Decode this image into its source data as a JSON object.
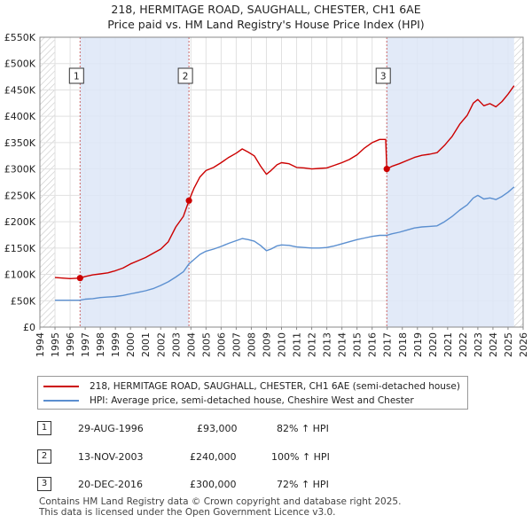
{
  "title_line1": "218, HERMITAGE ROAD, SAUGHALL, CHESTER, CH1 6AE",
  "title_line2": "Price paid vs. HM Land Registry's House Price Index (HPI)",
  "chart_data": {
    "type": "line",
    "title": "218, HERMITAGE ROAD, SAUGHALL, CHESTER, CH1 6AE — Price paid vs. HM Land Registry's House Price Index (HPI)",
    "xlabel": "",
    "ylabel": "",
    "xlim": [
      1994,
      2026
    ],
    "ylim": [
      0,
      550000
    ],
    "y_ticks": [
      0,
      50000,
      100000,
      150000,
      200000,
      250000,
      300000,
      350000,
      400000,
      450000,
      500000,
      550000
    ],
    "y_tick_labels": [
      "£0",
      "£50K",
      "£100K",
      "£150K",
      "£200K",
      "£250K",
      "£300K",
      "£350K",
      "£400K",
      "£450K",
      "£500K",
      "£550K"
    ],
    "x_ticks": [
      1994,
      1995,
      1996,
      1997,
      1998,
      1999,
      2000,
      2001,
      2002,
      2003,
      2004,
      2005,
      2006,
      2007,
      2008,
      2009,
      2010,
      2011,
      2012,
      2013,
      2014,
      2015,
      2016,
      2017,
      2018,
      2019,
      2020,
      2021,
      2022,
      2023,
      2024,
      2025,
      2026
    ],
    "x_tick_labels": [
      "1994",
      "1995",
      "1996",
      "1997",
      "1998",
      "1999",
      "2000",
      "2001",
      "2002",
      "2003",
      "2004",
      "2005",
      "2006",
      "2007",
      "2008",
      "2009",
      "2010",
      "2011",
      "2012",
      "2013",
      "2014",
      "2015",
      "2016",
      "2017",
      "2018",
      "2019",
      "2020",
      "2021",
      "2022",
      "2023",
      "2024",
      "2025",
      "2026"
    ],
    "grid": true,
    "data_start": 1995.0,
    "data_end": 2025.4,
    "series": [
      {
        "name": "218, HERMITAGE ROAD, SAUGHALL, CHESTER, CH1 6AE (semi-detached house)",
        "color": "#cc0000",
        "points": [
          [
            1995.0,
            94000
          ],
          [
            1995.5,
            93000
          ],
          [
            1996.0,
            92000
          ],
          [
            1996.66,
            93000
          ],
          [
            1997.0,
            96000
          ],
          [
            1997.5,
            99000
          ],
          [
            1998.0,
            101000
          ],
          [
            1998.5,
            103000
          ],
          [
            1999.0,
            107000
          ],
          [
            1999.5,
            112000
          ],
          [
            2000.0,
            120000
          ],
          [
            2000.5,
            126000
          ],
          [
            2001.0,
            132000
          ],
          [
            2001.5,
            140000
          ],
          [
            2002.0,
            148000
          ],
          [
            2002.5,
            162000
          ],
          [
            2003.0,
            190000
          ],
          [
            2003.5,
            210000
          ],
          [
            2003.87,
            240000
          ],
          [
            2004.2,
            263000
          ],
          [
            2004.6,
            285000
          ],
          [
            2005.0,
            297000
          ],
          [
            2005.5,
            303000
          ],
          [
            2006.0,
            312000
          ],
          [
            2006.5,
            322000
          ],
          [
            2007.0,
            330000
          ],
          [
            2007.4,
            338000
          ],
          [
            2007.8,
            332000
          ],
          [
            2008.2,
            325000
          ],
          [
            2008.6,
            306000
          ],
          [
            2009.0,
            290000
          ],
          [
            2009.3,
            297000
          ],
          [
            2009.7,
            308000
          ],
          [
            2010.0,
            312000
          ],
          [
            2010.5,
            310000
          ],
          [
            2011.0,
            303000
          ],
          [
            2011.5,
            302000
          ],
          [
            2012.0,
            300000
          ],
          [
            2012.5,
            301000
          ],
          [
            2013.0,
            302000
          ],
          [
            2013.5,
            307000
          ],
          [
            2014.0,
            312000
          ],
          [
            2014.5,
            318000
          ],
          [
            2015.0,
            327000
          ],
          [
            2015.5,
            340000
          ],
          [
            2016.0,
            350000
          ],
          [
            2016.5,
            356000
          ],
          [
            2016.9,
            356000
          ],
          [
            2016.97,
            300000
          ],
          [
            2017.3,
            305000
          ],
          [
            2017.8,
            310000
          ],
          [
            2018.3,
            316000
          ],
          [
            2018.8,
            322000
          ],
          [
            2019.3,
            326000
          ],
          [
            2019.8,
            328000
          ],
          [
            2020.3,
            331000
          ],
          [
            2020.8,
            345000
          ],
          [
            2021.3,
            362000
          ],
          [
            2021.8,
            385000
          ],
          [
            2022.3,
            402000
          ],
          [
            2022.7,
            425000
          ],
          [
            2023.0,
            432000
          ],
          [
            2023.4,
            420000
          ],
          [
            2023.8,
            424000
          ],
          [
            2024.2,
            418000
          ],
          [
            2024.6,
            428000
          ],
          [
            2025.0,
            442000
          ],
          [
            2025.4,
            458000
          ]
        ]
      },
      {
        "name": "HPI: Average price, semi-detached house, Cheshire West and Chester",
        "color": "#5b8fd0",
        "points": [
          [
            1995.0,
            51000
          ],
          [
            1995.5,
            51000
          ],
          [
            1996.0,
            51000
          ],
          [
            1996.66,
            51000
          ],
          [
            1997.0,
            53000
          ],
          [
            1997.5,
            54000
          ],
          [
            1998.0,
            56000
          ],
          [
            1998.5,
            57000
          ],
          [
            1999.0,
            58000
          ],
          [
            1999.5,
            60000
          ],
          [
            2000.0,
            63000
          ],
          [
            2000.5,
            66000
          ],
          [
            2001.0,
            69000
          ],
          [
            2001.5,
            73000
          ],
          [
            2002.0,
            79000
          ],
          [
            2002.5,
            86000
          ],
          [
            2003.0,
            95000
          ],
          [
            2003.5,
            105000
          ],
          [
            2003.87,
            120000
          ],
          [
            2004.2,
            128000
          ],
          [
            2004.6,
            138000
          ],
          [
            2005.0,
            144000
          ],
          [
            2005.5,
            148000
          ],
          [
            2006.0,
            153000
          ],
          [
            2006.5,
            159000
          ],
          [
            2007.0,
            164000
          ],
          [
            2007.4,
            168000
          ],
          [
            2007.8,
            166000
          ],
          [
            2008.2,
            163000
          ],
          [
            2008.6,
            155000
          ],
          [
            2009.0,
            145000
          ],
          [
            2009.3,
            148000
          ],
          [
            2009.7,
            154000
          ],
          [
            2010.0,
            156000
          ],
          [
            2010.5,
            155000
          ],
          [
            2011.0,
            152000
          ],
          [
            2011.5,
            151000
          ],
          [
            2012.0,
            150000
          ],
          [
            2012.5,
            150000
          ],
          [
            2013.0,
            151000
          ],
          [
            2013.5,
            154000
          ],
          [
            2014.0,
            158000
          ],
          [
            2014.5,
            162000
          ],
          [
            2015.0,
            166000
          ],
          [
            2015.5,
            169000
          ],
          [
            2016.0,
            172000
          ],
          [
            2016.5,
            174000
          ],
          [
            2016.97,
            174000
          ],
          [
            2017.3,
            177000
          ],
          [
            2017.8,
            180000
          ],
          [
            2018.3,
            184000
          ],
          [
            2018.8,
            188000
          ],
          [
            2019.3,
            190000
          ],
          [
            2019.8,
            191000
          ],
          [
            2020.3,
            192000
          ],
          [
            2020.8,
            200000
          ],
          [
            2021.3,
            210000
          ],
          [
            2021.8,
            222000
          ],
          [
            2022.3,
            232000
          ],
          [
            2022.7,
            245000
          ],
          [
            2023.0,
            250000
          ],
          [
            2023.4,
            243000
          ],
          [
            2023.8,
            245000
          ],
          [
            2024.2,
            242000
          ],
          [
            2024.6,
            248000
          ],
          [
            2025.0,
            256000
          ],
          [
            2025.4,
            266000
          ]
        ]
      }
    ],
    "sales": [
      {
        "id": "1",
        "x": 1996.66,
        "price": 93000
      },
      {
        "id": "2",
        "x": 2003.87,
        "price": 240000
      },
      {
        "id": "3",
        "x": 2016.97,
        "price": 300000
      }
    ],
    "shaded_periods": [
      [
        1996.66,
        2003.87
      ],
      [
        2016.97,
        2025.4
      ]
    ],
    "colors": {
      "price_line": "#cc0000",
      "hpi_line": "#5b8fd0",
      "shade": "#dde6f7",
      "hatch": "#c8c8c8",
      "grid": "#e1e1e1",
      "marker_line": "#cc6666"
    }
  },
  "legend": {
    "price_label": "218, HERMITAGE ROAD, SAUGHALL, CHESTER, CH1 6AE (semi-detached house)",
    "hpi_label": "HPI: Average price, semi-detached house, Cheshire West and Chester"
  },
  "transactions": [
    {
      "id": "1",
      "date": "29-AUG-1996",
      "price": "£93,000",
      "hpi": "82% ↑ HPI"
    },
    {
      "id": "2",
      "date": "13-NOV-2003",
      "price": "£240,000",
      "hpi": "100% ↑ HPI"
    },
    {
      "id": "3",
      "date": "20-DEC-2016",
      "price": "£300,000",
      "hpi": "72% ↑ HPI"
    }
  ],
  "footer": {
    "line1": "Contains HM Land Registry data © Crown copyright and database right 2025.",
    "line2": "This data is licensed under the Open Government Licence v3.0."
  }
}
